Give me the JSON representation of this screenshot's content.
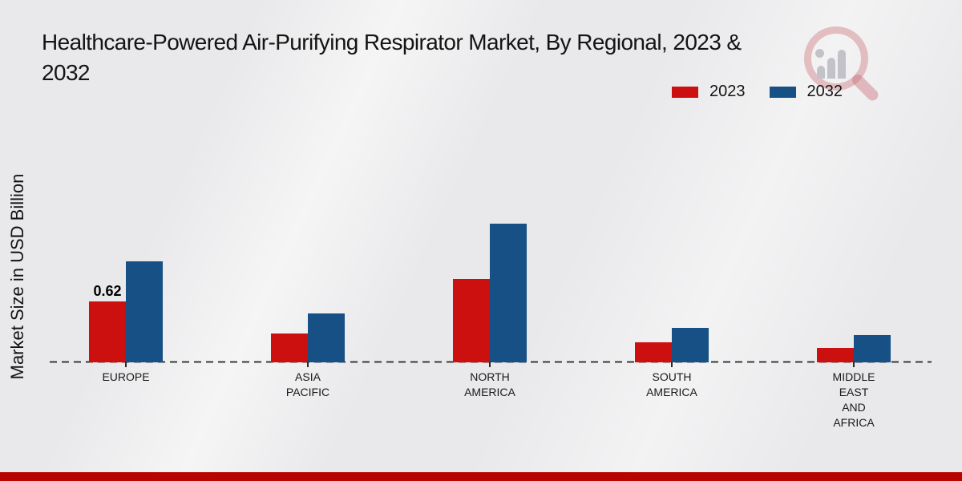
{
  "title": {
    "line1": "Healthcare-Powered Air-Purifying Respirator Market, By Regional, 2023 &",
    "line2": "2032"
  },
  "y_axis_label": "Market Size in USD Billion",
  "legend": {
    "position": "top-right",
    "items": [
      {
        "label": "2023",
        "color": "#cc0f0f"
      },
      {
        "label": "2032",
        "color": "#175084"
      }
    ]
  },
  "chart_data": {
    "type": "bar",
    "title": "Healthcare-Powered Air-Purifying Respirator Market, By Regional, 2023 & 2032",
    "xlabel": "",
    "ylabel": "Market Size in USD Billion",
    "unit": "USD Billion",
    "grid": false,
    "legend_position": "top-right",
    "baseline_style": "dashed",
    "ylim": [
      0,
      1.6
    ],
    "categories": [
      "EUROPE",
      "ASIA PACIFIC",
      "NORTH AMERICA",
      "SOUTH AMERICA",
      "MIDDLE EAST AND AFRICA"
    ],
    "category_label_lines": [
      [
        "EUROPE"
      ],
      [
        "ASIA",
        "PACIFIC"
      ],
      [
        "NORTH",
        "AMERICA"
      ],
      [
        "SOUTH",
        "AMERICA"
      ],
      [
        "MIDDLE",
        "EAST",
        "AND",
        "AFRICA"
      ]
    ],
    "series": [
      {
        "name": "2023",
        "color": "#cc0f0f",
        "values": [
          0.62,
          0.29,
          0.85,
          0.2,
          0.15
        ]
      },
      {
        "name": "2032",
        "color": "#175084",
        "values": [
          1.03,
          0.5,
          1.41,
          0.35,
          0.28
        ]
      }
    ],
    "annotations": [
      {
        "category": "EUROPE",
        "series": "2023",
        "text": "0.62"
      }
    ]
  },
  "colors": {
    "bar_2023": "#cc0f0f",
    "bar_2032": "#175084",
    "footer_strip": "#b80400",
    "background": "#e9e9eb",
    "axis_line": "#222222",
    "text": "#141414"
  }
}
